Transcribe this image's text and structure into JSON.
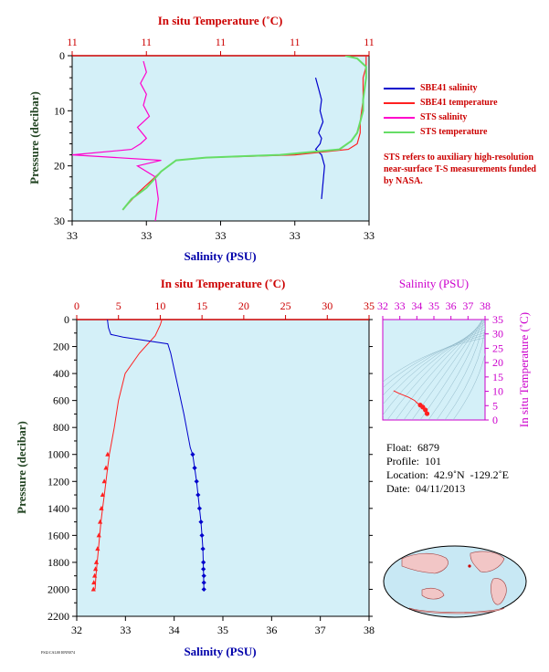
{
  "colors": {
    "plot_bg": "#d4f0f8",
    "salinity": "#0000cc",
    "temperature": "#ff2020",
    "sts_salinity": "#ff00cc",
    "sts_temperature": "#66dd66",
    "axis_red": "#cc0000",
    "axis_green": "#224422",
    "axis_blue": "#0000aa",
    "axis_magenta": "#cc00cc"
  },
  "chart_data": [
    {
      "id": "surface-detail",
      "type": "line",
      "top_title": "In situ Temperature (˚C)",
      "top_ticks": [
        "11",
        "11",
        "11",
        "11",
        "11"
      ],
      "xlabel": "Salinity (PSU)",
      "bottom_ticks": [
        "33",
        "33",
        "33",
        "33",
        "33"
      ],
      "ylabel": "Pressure (decibar)",
      "y_ticks": [
        "0",
        "10",
        "20",
        "30"
      ],
      "ylim": [
        0,
        30
      ],
      "series": [
        {
          "name": "SBE41 salinity",
          "x_frac": [
            0.82,
            0.83,
            0.84,
            0.835,
            0.845,
            0.83,
            0.84,
            0.835,
            0.82,
            0.84,
            0.85,
            0.84
          ],
          "y": [
            4,
            6,
            8,
            10,
            12,
            14,
            15,
            16,
            17,
            18,
            20,
            26
          ]
        },
        {
          "name": "SBE41 temperature",
          "x_frac": [
            0.99,
            0.99,
            0.98,
            0.98,
            0.97,
            0.97,
            0.96,
            0.93,
            0.75,
            0.45,
            0.35,
            0.3,
            0.22,
            0.17
          ],
          "y": [
            0,
            2,
            4,
            8,
            12,
            14,
            16,
            17,
            18,
            18.5,
            19,
            21,
            25,
            28
          ]
        },
        {
          "name": "STS salinity",
          "x_frac": [
            0.24,
            0.25,
            0.23,
            0.25,
            0.24,
            0.26,
            0.22,
            0.25,
            0.23,
            0.2,
            0.0,
            0.3,
            0.22,
            0.28,
            0.29,
            0.28
          ],
          "y": [
            1,
            3,
            5,
            7,
            9,
            11,
            13,
            15,
            16,
            17,
            18,
            19,
            20,
            22,
            26,
            30
          ]
        },
        {
          "name": "STS temperature",
          "x_frac": [
            0.92,
            0.96,
            0.99,
            0.99,
            0.98,
            0.98,
            0.97,
            0.96,
            0.94,
            0.9,
            0.7,
            0.45,
            0.35,
            0.3,
            0.25,
            0.2,
            0.17
          ],
          "y": [
            0,
            0.5,
            2,
            4,
            8,
            10,
            12,
            14,
            15.5,
            17,
            18,
            18.5,
            19,
            21,
            24,
            26,
            28
          ]
        }
      ],
      "legend": [
        "SBE41 salinity",
        "SBE41 temperature",
        "STS salinity",
        "STS temperature"
      ],
      "legend_placement": "right",
      "note": "STS refers to auxiliary high-resolution near-surface T-S measurements funded by NASA."
    },
    {
      "id": "full-profile",
      "type": "line",
      "top_title": "In situ Temperature (˚C)",
      "top_ticks": [
        "0",
        "5",
        "10",
        "15",
        "20",
        "25",
        "30",
        "35"
      ],
      "xlim_top": [
        0,
        35
      ],
      "xlabel": "Salinity (PSU)",
      "bottom_ticks": [
        "32",
        "33",
        "34",
        "35",
        "36",
        "37",
        "38"
      ],
      "xlim_bottom": [
        32,
        38
      ],
      "ylabel": "Pressure (decibar)",
      "y_ticks": [
        "0",
        "200",
        "400",
        "600",
        "800",
        "1000",
        "1200",
        "1400",
        "1600",
        "1800",
        "2000",
        "2200"
      ],
      "ylim": [
        0,
        2200
      ],
      "series": [
        {
          "name": "temperature",
          "x": [
            10.2,
            10.0,
            9.4,
            7.5,
            5.8,
            5.0,
            4.5,
            4.2,
            3.9,
            3.7,
            3.5,
            3.3,
            3.1,
            2.9,
            2.75,
            2.6,
            2.45,
            2.3,
            2.2
          ],
          "y": [
            0,
            40,
            120,
            250,
            400,
            600,
            800,
            900,
            1000,
            1100,
            1200,
            1300,
            1400,
            1500,
            1600,
            1700,
            1800,
            1900,
            2000
          ]
        },
        {
          "name": "salinity",
          "x": [
            32.63,
            32.65,
            32.7,
            32.95,
            33.87,
            33.93,
            34.02,
            34.2,
            34.33,
            34.38,
            34.42,
            34.46,
            34.49,
            34.52,
            34.55,
            34.57,
            34.59,
            34.6,
            34.61
          ],
          "y": [
            0,
            60,
            110,
            130,
            180,
            250,
            400,
            700,
            950,
            1000,
            1100,
            1200,
            1300,
            1400,
            1500,
            1600,
            1700,
            1850,
            2000
          ]
        },
        {
          "name": "temperature-markers",
          "x": [
            3.7,
            3.5,
            3.3,
            3.1,
            2.95,
            2.8,
            2.65,
            2.5,
            2.35,
            2.25,
            2.15,
            2.05,
            2.0
          ],
          "y": [
            1000,
            1100,
            1200,
            1300,
            1400,
            1500,
            1600,
            1700,
            1800,
            1850,
            1900,
            1950,
            2000
          ]
        },
        {
          "name": "salinity-markers",
          "x": [
            34.38,
            34.42,
            34.46,
            34.49,
            34.52,
            34.55,
            34.57,
            34.59,
            34.6,
            34.6,
            34.61,
            34.61,
            34.61
          ],
          "y": [
            1000,
            1100,
            1200,
            1300,
            1400,
            1500,
            1600,
            1700,
            1800,
            1850,
            1900,
            1950,
            2000
          ]
        }
      ]
    },
    {
      "id": "ts-diagram",
      "type": "scatter",
      "top_title": "Salinity (PSU)",
      "top_ticks": [
        "32",
        "33",
        "34",
        "35",
        "36",
        "37",
        "38"
      ],
      "xlim": [
        32,
        38
      ],
      "ylabel": "In situ Temperature (˚C)",
      "y_ticks": [
        "0",
        "5",
        "10",
        "15",
        "20",
        "25",
        "30",
        "35"
      ],
      "ylim": [
        0,
        35
      ],
      "series": [
        {
          "name": "ts-curve",
          "x": [
            32.63,
            32.7,
            32.95,
            33.5,
            33.87,
            34.0,
            34.2,
            34.35,
            34.5,
            34.6
          ],
          "y": [
            10.2,
            10.0,
            9.3,
            8.0,
            6.8,
            6.0,
            5.2,
            4.5,
            3.5,
            2.2
          ]
        }
      ]
    }
  ],
  "float_info": {
    "float": "Float:  6879",
    "profile": "Profile:  101",
    "location": "Location:  42.9˚N  -129.2˚E",
    "date": "Date:  04/11/2013"
  },
  "footer_small": "FSI2:CAL00 I0NN074"
}
